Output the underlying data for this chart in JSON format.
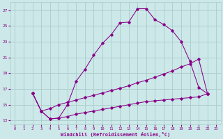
{
  "xlabel": "Windchill (Refroidissement éolien,°C)",
  "bg_color": "#cce8e8",
  "line_color": "#880088",
  "grid_color": "#aacccc",
  "xlim": [
    -0.5,
    23.5
  ],
  "ylim": [
    12.5,
    28.0
  ],
  "yticks": [
    13,
    15,
    17,
    19,
    21,
    23,
    25,
    27
  ],
  "xticks": [
    0,
    1,
    2,
    3,
    4,
    5,
    6,
    7,
    8,
    9,
    10,
    11,
    12,
    13,
    14,
    15,
    16,
    17,
    18,
    19,
    20,
    21,
    22,
    23
  ],
  "series": [
    {
      "x": [
        2,
        3,
        4,
        5,
        6,
        7,
        8,
        9,
        10,
        11,
        12,
        13,
        14,
        15,
        16,
        17,
        18,
        19,
        20,
        21,
        22
      ],
      "y": [
        16.5,
        14.2,
        13.2,
        13.3,
        15.0,
        18.0,
        19.5,
        21.3,
        22.8,
        23.9,
        25.4,
        25.5,
        27.2,
        27.2,
        25.8,
        25.2,
        24.4,
        23.0,
        20.5,
        17.2,
        16.4
      ]
    },
    {
      "x": [
        2,
        3,
        4,
        5,
        6,
        7,
        8,
        9,
        10,
        11,
        12,
        13,
        14,
        15,
        16,
        17,
        18,
        19,
        20,
        21,
        22
      ],
      "y": [
        16.5,
        14.2,
        14.5,
        15.0,
        15.3,
        15.6,
        15.9,
        16.2,
        16.5,
        16.8,
        17.1,
        17.4,
        17.8,
        18.1,
        18.5,
        18.9,
        19.3,
        19.8,
        20.2,
        20.8,
        16.4
      ]
    },
    {
      "x": [
        2,
        3,
        4,
        5,
        6,
        7,
        8,
        9,
        10,
        11,
        12,
        13,
        14,
        15,
        16,
        17,
        18,
        19,
        20,
        21,
        22
      ],
      "y": [
        16.5,
        14.2,
        13.2,
        13.3,
        13.5,
        13.8,
        14.0,
        14.2,
        14.4,
        14.6,
        14.8,
        15.0,
        15.2,
        15.4,
        15.5,
        15.6,
        15.7,
        15.8,
        15.9,
        16.0,
        16.4
      ]
    }
  ]
}
